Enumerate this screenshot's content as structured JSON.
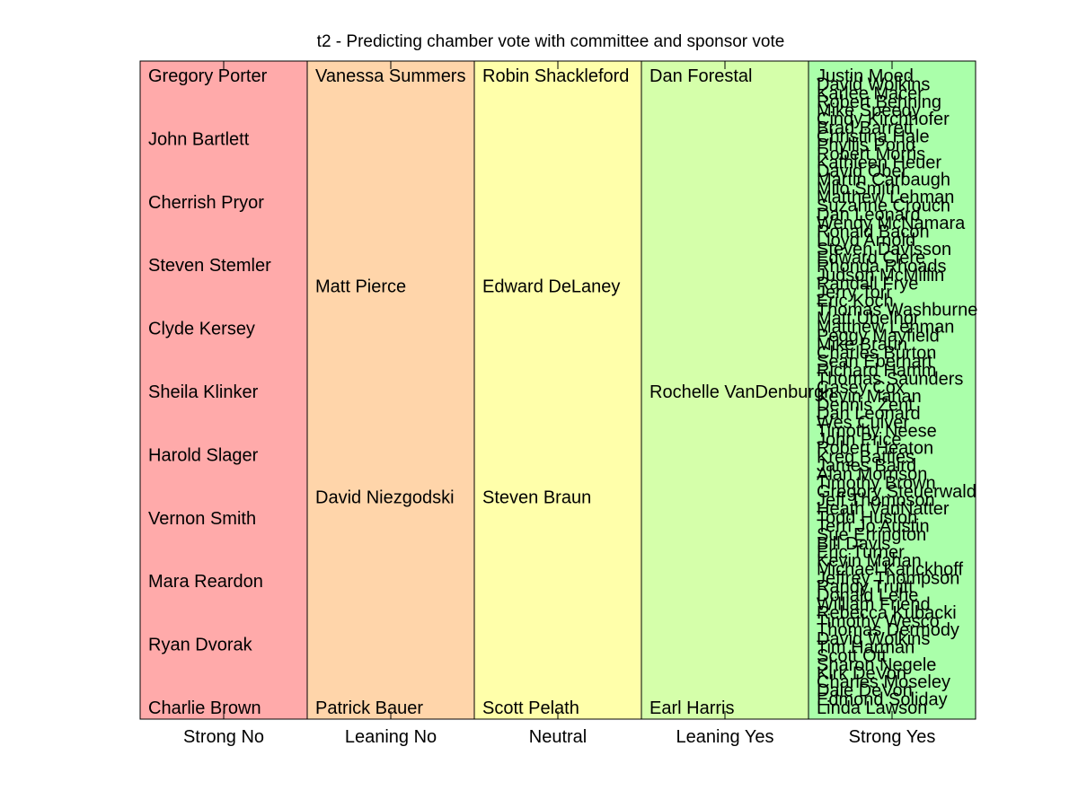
{
  "chart_data": {
    "type": "table",
    "title": "t2 - Predicting chamber vote with committee and sponsor vote",
    "categories": [
      "Strong No",
      "Leaning No",
      "Neutral",
      "Leaning Yes",
      "Strong Yes"
    ],
    "colors": [
      "#ffaaaa",
      "#ffd5aa",
      "#ffffaa",
      "#d5ffaa",
      "#aaffaa"
    ],
    "columns": [
      {
        "category": "Strong No",
        "names": [
          "Gregory Porter",
          "John Bartlett",
          "Cherrish Pryor",
          "Steven Stemler",
          "Clyde Kersey",
          "Sheila Klinker",
          "Harold Slager",
          "Vernon Smith",
          "Mara Reardon",
          "Ryan Dvorak",
          "Charlie Brown"
        ]
      },
      {
        "category": "Leaning No",
        "names": [
          "Vanessa Summers",
          "Matt Pierce",
          "David Niezgodski",
          "Patrick Bauer"
        ]
      },
      {
        "category": "Neutral",
        "names": [
          "Robin Shackleford",
          "Edward DeLaney",
          "Steven Braun",
          "Scott Pelath"
        ]
      },
      {
        "category": "Leaning Yes",
        "names": [
          "Dan Forestal",
          "Rochelle VanDenburgh",
          "Earl Harris"
        ]
      },
      {
        "category": "Strong Yes",
        "names": [
          "Justin Moed",
          "David Wolkins",
          "Karlee Macer",
          "Robert Behning",
          "Mike Speedy",
          "Cindy Kirchhofer",
          "Brad Barrett",
          "Christina Hale",
          "Phyllis Pond",
          "Robert Morris",
          "Kathleen Heuer",
          "David Ober",
          "Martin Carbaugh",
          "Milo Smith",
          "Matthew Lehman",
          "Suzanne Crouch",
          "Dan Leonard",
          "Wendy McNamara",
          "Ronald Bacon",
          "Lloyd Arnold",
          "Steven Davisson",
          "Edward Clere",
          "Rhonda Rhoads",
          "Judson McMillin",
          "Randall Frye",
          "Jerry Torr",
          "Eric Koch",
          "Thomas Washburne",
          "Matt Ubelhor",
          "Matthew Lehman",
          "Peggy Mayfield",
          "Mike Braun",
          "Charles Burton",
          "Sean Eberhart",
          "Richard Hamm",
          "Thomas Saunders",
          "Casey Cox",
          "Kevin Mahan",
          "Dennis Zent",
          "Dan Leonard",
          "Wes Culver",
          "Timothy Neese",
          "John Price",
          "Robert Heaton",
          "Kreg Battles",
          "James Baird",
          "Alan Morrison",
          "Timothy Brown",
          "Gregory Steuerwald",
          "Jeff Thompson",
          "Heath VanNatter",
          "Todd Huston",
          "Terri Jo Austin",
          "Sue Errington",
          "Bill Davis",
          "Eric Turner",
          "Kevin Mahan",
          "Michael Karickhoff",
          "Jeffrey Thompson",
          "Randy Truitt",
          "Donald Lehe",
          "William Friend",
          "Rebecca Kubacki",
          "Timothy Wesco",
          "Thomas Dermody",
          "David Wolkins",
          "Tim Harman",
          "Scott Ott",
          "Sharon Negele",
          "Kirk DeVon",
          "Charles Moseley",
          "Dale DeVon",
          "Edmond Soliday",
          "Linda Lawson"
        ]
      }
    ]
  }
}
